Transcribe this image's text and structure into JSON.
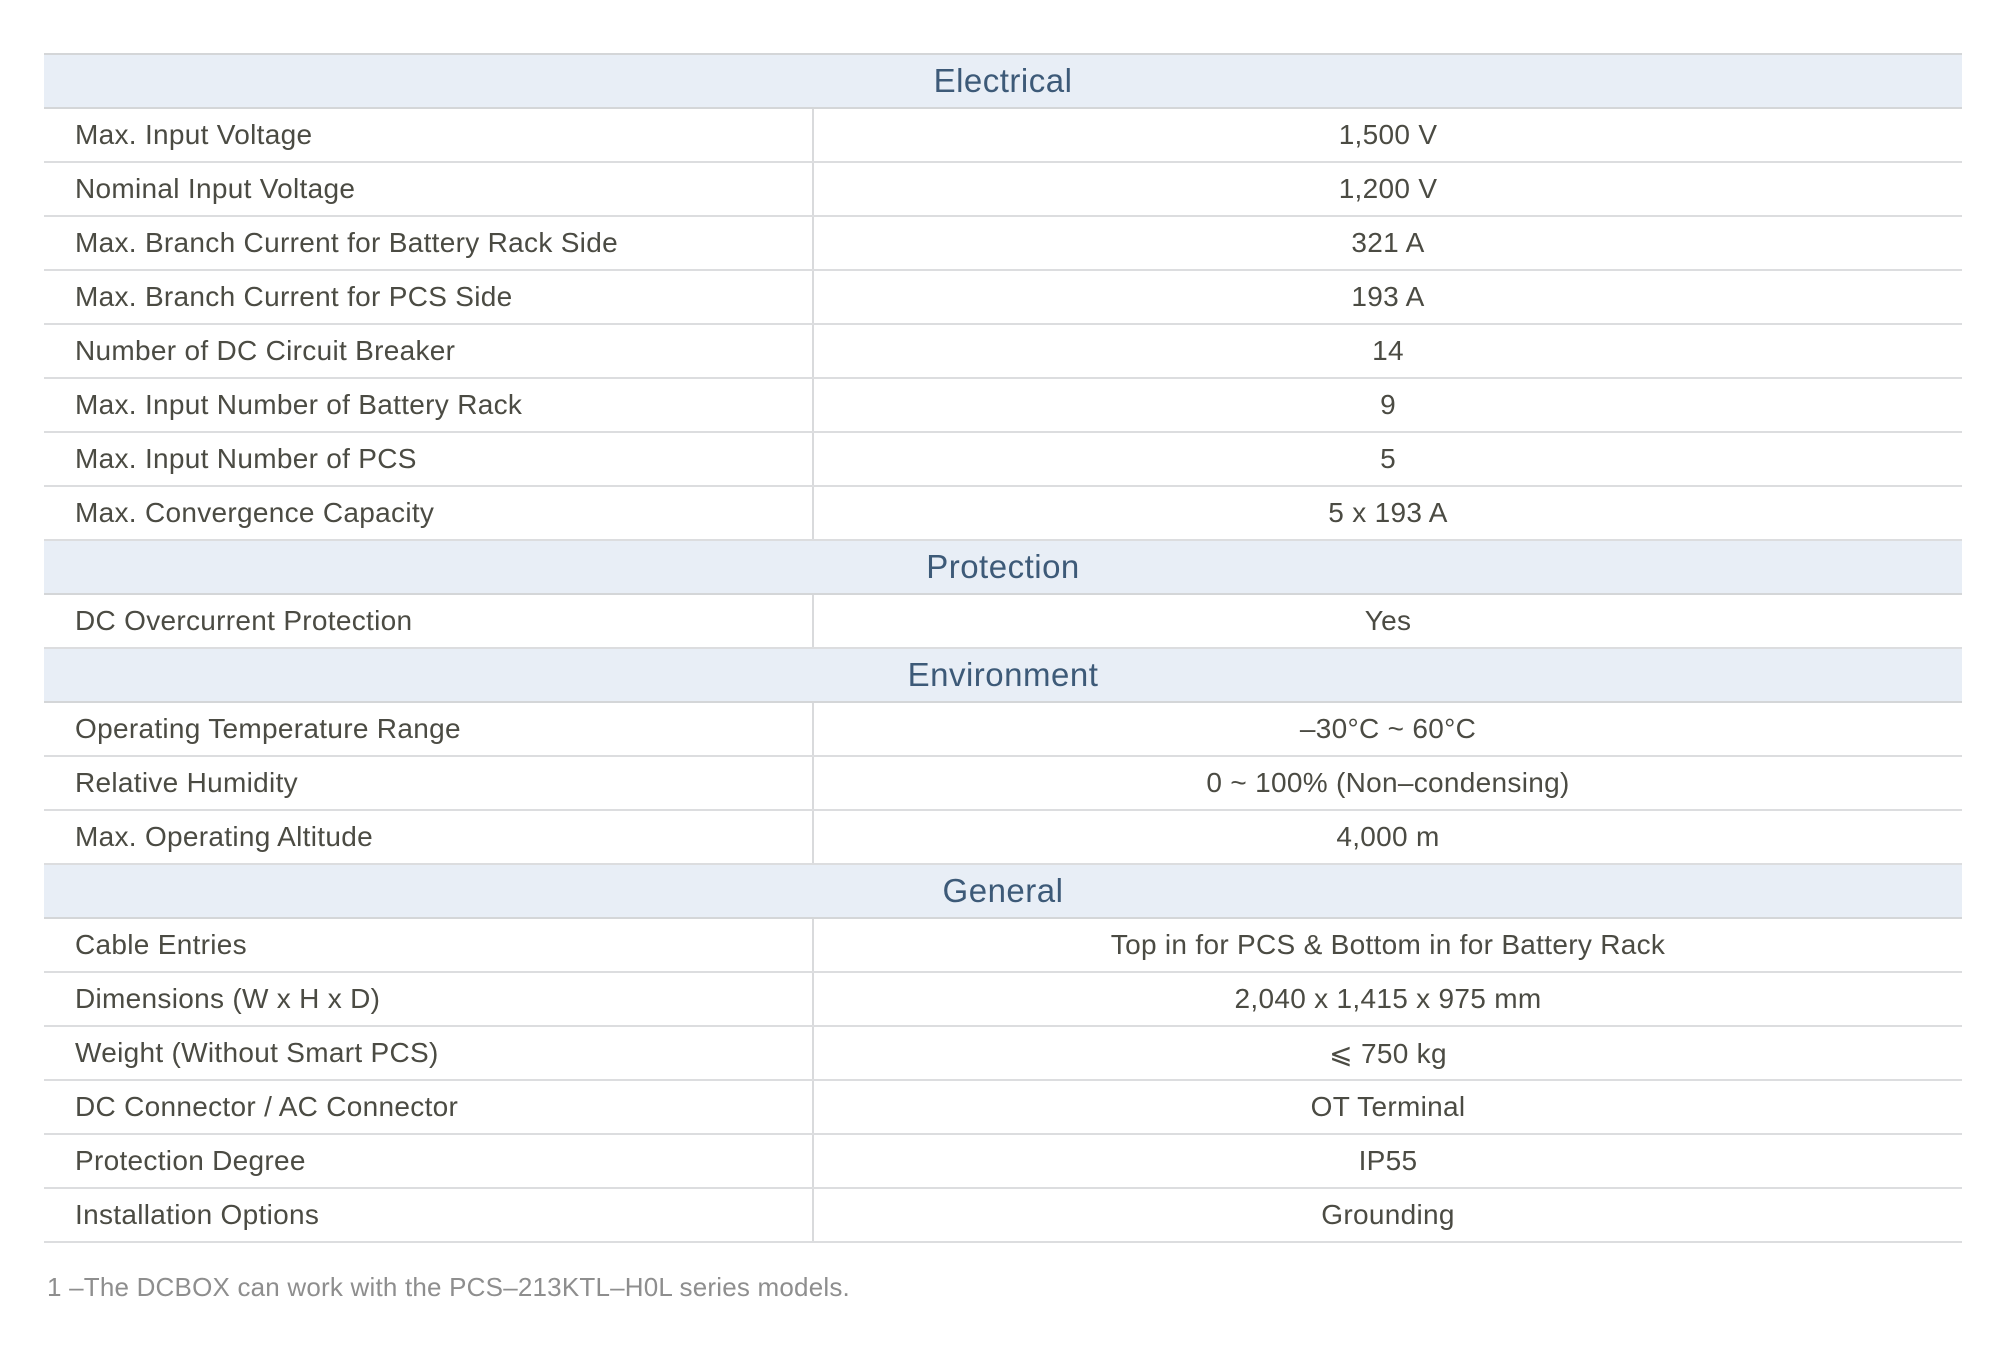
{
  "table": {
    "sections": [
      {
        "title": "Electrical",
        "rows": [
          {
            "label": "Max. Input Voltage",
            "value": "1,500 V"
          },
          {
            "label": "Nominal Input Voltage",
            "value": "1,200 V"
          },
          {
            "label": "Max. Branch Current for Battery Rack Side",
            "value": "321 A"
          },
          {
            "label": "Max. Branch Current for PCS Side",
            "value": "193 A"
          },
          {
            "label": "Number of DC Circuit Breaker",
            "value": "14"
          },
          {
            "label": "Max. Input Number of Battery Rack",
            "value": "9"
          },
          {
            "label": "Max. Input Number of PCS",
            "value": "5"
          },
          {
            "label": "Max. Convergence Capacity",
            "value": "5 x 193 A"
          }
        ]
      },
      {
        "title": "Protection",
        "rows": [
          {
            "label": "DC Overcurrent Protection",
            "value": "Yes"
          }
        ]
      },
      {
        "title": "Environment",
        "rows": [
          {
            "label": "Operating Temperature Range",
            "value": "–30°C ~ 60°C"
          },
          {
            "label": "Relative Humidity",
            "value": "0 ~ 100% (Non–condensing)"
          },
          {
            "label": "Max. Operating Altitude",
            "value": "4,000 m"
          }
        ]
      },
      {
        "title": "General",
        "rows": [
          {
            "label": "Cable Entries",
            "value": "Top in for PCS & Bottom in for Battery Rack"
          },
          {
            "label": "Dimensions (W x H x D)",
            "value": "2,040 x 1,415 x 975 mm"
          },
          {
            "label": "Weight (Without Smart PCS)",
            "value": "⩽ 750 kg"
          },
          {
            "label": "DC Connector / AC Connector",
            "value": "OT Terminal"
          },
          {
            "label": "Protection Degree",
            "value": "IP55"
          },
          {
            "label": "Installation Options",
            "value": "Grounding"
          }
        ]
      }
    ]
  },
  "footnote": "1 –The DCBOX can work with the PCS–213KTL–H0L series models.",
  "colors": {
    "section_header_bg": "#e8eef6",
    "section_header_text": "#3d5a78",
    "body_text": "#4b4b43",
    "border": "#d4d6d8",
    "footnote_text": "#8e8e8e"
  }
}
